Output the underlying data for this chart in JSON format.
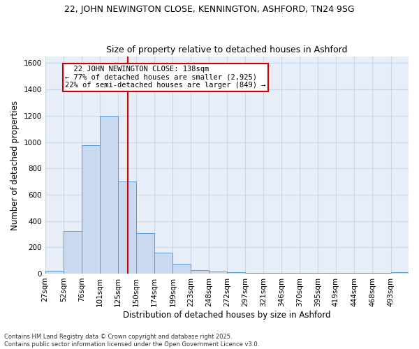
{
  "title1": "22, JOHN NEWINGTON CLOSE, KENNINGTON, ASHFORD, TN24 9SG",
  "title2": "Size of property relative to detached houses in Ashford",
  "xlabel": "Distribution of detached houses by size in Ashford",
  "ylabel": "Number of detached properties",
  "bin_edges": [
    27,
    52,
    76,
    101,
    125,
    150,
    174,
    199,
    223,
    248,
    272,
    297,
    321,
    346,
    370,
    395,
    419,
    444,
    468,
    493,
    517
  ],
  "bar_heights": [
    20,
    325,
    975,
    1200,
    700,
    305,
    160,
    75,
    25,
    15,
    10,
    5,
    5,
    5,
    5,
    5,
    5,
    5,
    5,
    10
  ],
  "bar_color": "#c9d9f0",
  "bar_edgecolor": "#5b9bd5",
  "vline_x": 138,
  "vline_color": "#cc0000",
  "annotation_text": "  22 JOHN NEWINGTON CLOSE: 138sqm\n← 77% of detached houses are smaller (2,925)\n22% of semi-detached houses are larger (849) →",
  "annotation_box_color": "#ffffff",
  "annotation_border_color": "#cc0000",
  "ylim": [
    0,
    1650
  ],
  "yticks": [
    0,
    200,
    400,
    600,
    800,
    1000,
    1200,
    1400,
    1600
  ],
  "grid_color": "#c8d8ec",
  "background_color": "#e8eef8",
  "footer_text": "Contains HM Land Registry data © Crown copyright and database right 2025.\nContains public sector information licensed under the Open Government Licence v3.0.",
  "title1_fontsize": 9,
  "title2_fontsize": 9,
  "tick_fontsize": 7.5,
  "label_fontsize": 8.5,
  "annot_fontsize": 7.5,
  "footer_fontsize": 6
}
